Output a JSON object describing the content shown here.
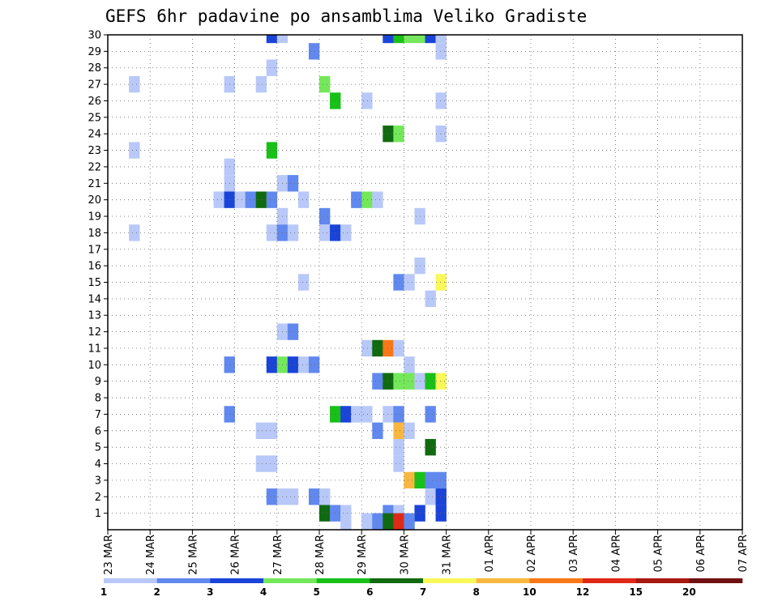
{
  "chart_data": {
    "type": "heatmap",
    "title": "GEFS 6hr padavine po ansamblima Veliko Gradiste",
    "x_tick_labels": [
      "23 MAR",
      "24 MAR",
      "25 MAR",
      "26 MAR",
      "27 MAR",
      "28 MAR",
      "29 MAR",
      "30 MAR",
      "31 MAR",
      "01 APR",
      "02 APR",
      "03 APR",
      "04 APR",
      "05 APR",
      "06 APR",
      "07 APR"
    ],
    "y_tick_labels": [
      "1",
      "2",
      "3",
      "4",
      "5",
      "6",
      "7",
      "8",
      "9",
      "10",
      "11",
      "12",
      "13",
      "14",
      "15",
      "16",
      "17",
      "18",
      "19",
      "20",
      "21",
      "22",
      "23",
      "24",
      "25",
      "26",
      "27",
      "28",
      "29",
      "30"
    ],
    "x_unit": "6-hour step from 23 MAR",
    "ylim": [
      0,
      30
    ],
    "grid": true,
    "colorbar": {
      "levels": [
        "1",
        "2",
        "3",
        "4",
        "5",
        "6",
        "7",
        "8",
        "10",
        "12",
        "15",
        "20"
      ],
      "colors": [
        "#b8c8f8",
        "#6088ee",
        "#1a44d8",
        "#74e85a",
        "#18c018",
        "#106a10",
        "#f8f858",
        "#f8b840",
        "#f87818",
        "#e02818",
        "#a81810",
        "#701010"
      ]
    },
    "cells": [
      {
        "step": 15,
        "member": 30,
        "bin": 2
      },
      {
        "step": 16,
        "member": 30,
        "bin": 0
      },
      {
        "step": 26,
        "member": 30,
        "bin": 2
      },
      {
        "step": 27,
        "member": 30,
        "bin": 4
      },
      {
        "step": 28,
        "member": 30,
        "bin": 3
      },
      {
        "step": 29,
        "member": 30,
        "bin": 3
      },
      {
        "step": 30,
        "member": 30,
        "bin": 2
      },
      {
        "step": 31,
        "member": 30,
        "bin": 0
      },
      {
        "step": 19,
        "member": 29,
        "bin": 1
      },
      {
        "step": 31,
        "member": 29,
        "bin": 0
      },
      {
        "step": 15,
        "member": 28,
        "bin": 0
      },
      {
        "step": 2,
        "member": 27,
        "bin": 0
      },
      {
        "step": 11,
        "member": 27,
        "bin": 0
      },
      {
        "step": 14,
        "member": 27,
        "bin": 0
      },
      {
        "step": 20,
        "member": 27,
        "bin": 3
      },
      {
        "step": 21,
        "member": 26,
        "bin": 4
      },
      {
        "step": 24,
        "member": 26,
        "bin": 0
      },
      {
        "step": 31,
        "member": 26,
        "bin": 0
      },
      {
        "step": 26,
        "member": 24,
        "bin": 5
      },
      {
        "step": 27,
        "member": 24,
        "bin": 3
      },
      {
        "step": 31,
        "member": 24,
        "bin": 0
      },
      {
        "step": 2,
        "member": 23,
        "bin": 0
      },
      {
        "step": 15,
        "member": 23,
        "bin": 4
      },
      {
        "step": 11,
        "member": 22,
        "bin": 0
      },
      {
        "step": 11,
        "member": 21,
        "bin": 0
      },
      {
        "step": 16,
        "member": 21,
        "bin": 0
      },
      {
        "step": 17,
        "member": 21,
        "bin": 1
      },
      {
        "step": 10,
        "member": 20,
        "bin": 0
      },
      {
        "step": 11,
        "member": 20,
        "bin": 2
      },
      {
        "step": 12,
        "member": 20,
        "bin": 0
      },
      {
        "step": 13,
        "member": 20,
        "bin": 1
      },
      {
        "step": 14,
        "member": 20,
        "bin": 5
      },
      {
        "step": 15,
        "member": 20,
        "bin": 1
      },
      {
        "step": 18,
        "member": 20,
        "bin": 0
      },
      {
        "step": 23,
        "member": 20,
        "bin": 1
      },
      {
        "step": 24,
        "member": 20,
        "bin": 3
      },
      {
        "step": 25,
        "member": 20,
        "bin": 0
      },
      {
        "step": 16,
        "member": 19,
        "bin": 0
      },
      {
        "step": 20,
        "member": 19,
        "bin": 1
      },
      {
        "step": 29,
        "member": 19,
        "bin": 0
      },
      {
        "step": 2,
        "member": 18,
        "bin": 0
      },
      {
        "step": 15,
        "member": 18,
        "bin": 0
      },
      {
        "step": 16,
        "member": 18,
        "bin": 1
      },
      {
        "step": 17,
        "member": 18,
        "bin": 0
      },
      {
        "step": 20,
        "member": 18,
        "bin": 0
      },
      {
        "step": 21,
        "member": 18,
        "bin": 2
      },
      {
        "step": 22,
        "member": 18,
        "bin": 0
      },
      {
        "step": 29,
        "member": 16,
        "bin": 0
      },
      {
        "step": 18,
        "member": 15,
        "bin": 0
      },
      {
        "step": 27,
        "member": 15,
        "bin": 1
      },
      {
        "step": 28,
        "member": 15,
        "bin": 0
      },
      {
        "step": 31,
        "member": 15,
        "bin": 6
      },
      {
        "step": 30,
        "member": 14,
        "bin": 0
      },
      {
        "step": 16,
        "member": 12,
        "bin": 0
      },
      {
        "step": 17,
        "member": 12,
        "bin": 1
      },
      {
        "step": 24,
        "member": 11,
        "bin": 0
      },
      {
        "step": 25,
        "member": 11,
        "bin": 5
      },
      {
        "step": 26,
        "member": 11,
        "bin": 8
      },
      {
        "step": 27,
        "member": 11,
        "bin": 0
      },
      {
        "step": 11,
        "member": 10,
        "bin": 1
      },
      {
        "step": 15,
        "member": 10,
        "bin": 2
      },
      {
        "step": 16,
        "member": 10,
        "bin": 3
      },
      {
        "step": 17,
        "member": 10,
        "bin": 2
      },
      {
        "step": 18,
        "member": 10,
        "bin": 0
      },
      {
        "step": 19,
        "member": 10,
        "bin": 1
      },
      {
        "step": 28,
        "member": 10,
        "bin": 0
      },
      {
        "step": 25,
        "member": 9,
        "bin": 1
      },
      {
        "step": 26,
        "member": 9,
        "bin": 5
      },
      {
        "step": 27,
        "member": 9,
        "bin": 3
      },
      {
        "step": 28,
        "member": 9,
        "bin": 3
      },
      {
        "step": 29,
        "member": 9,
        "bin": 0
      },
      {
        "step": 30,
        "member": 9,
        "bin": 4
      },
      {
        "step": 31,
        "member": 9,
        "bin": 6
      },
      {
        "step": 11,
        "member": 7,
        "bin": 1
      },
      {
        "step": 21,
        "member": 7,
        "bin": 4
      },
      {
        "step": 22,
        "member": 7,
        "bin": 2
      },
      {
        "step": 23,
        "member": 7,
        "bin": 0
      },
      {
        "step": 24,
        "member": 7,
        "bin": 0
      },
      {
        "step": 26,
        "member": 7,
        "bin": 0
      },
      {
        "step": 27,
        "member": 7,
        "bin": 1
      },
      {
        "step": 30,
        "member": 7,
        "bin": 1
      },
      {
        "step": 14,
        "member": 6,
        "bin": 0
      },
      {
        "step": 15,
        "member": 6,
        "bin": 0
      },
      {
        "step": 25,
        "member": 6,
        "bin": 1
      },
      {
        "step": 27,
        "member": 6,
        "bin": 7
      },
      {
        "step": 28,
        "member": 6,
        "bin": 0
      },
      {
        "step": 27,
        "member": 5,
        "bin": 0
      },
      {
        "step": 30,
        "member": 5,
        "bin": 5
      },
      {
        "step": 14,
        "member": 4,
        "bin": 0
      },
      {
        "step": 15,
        "member": 4,
        "bin": 0
      },
      {
        "step": 27,
        "member": 4,
        "bin": 0
      },
      {
        "step": 28,
        "member": 3,
        "bin": 7
      },
      {
        "step": 29,
        "member": 3,
        "bin": 4
      },
      {
        "step": 30,
        "member": 3,
        "bin": 1
      },
      {
        "step": 31,
        "member": 3,
        "bin": 1
      },
      {
        "step": 15,
        "member": 2,
        "bin": 1
      },
      {
        "step": 16,
        "member": 2,
        "bin": 0
      },
      {
        "step": 17,
        "member": 2,
        "bin": 0
      },
      {
        "step": 19,
        "member": 2,
        "bin": 1
      },
      {
        "step": 20,
        "member": 2,
        "bin": 0
      },
      {
        "step": 30,
        "member": 2,
        "bin": 0
      },
      {
        "step": 31,
        "member": 2,
        "bin": 2
      },
      {
        "step": 20,
        "member": 1,
        "bin": 5
      },
      {
        "step": 21,
        "member": 1,
        "bin": 1
      },
      {
        "step": 22,
        "member": 1,
        "bin": 0
      },
      {
        "step": 26,
        "member": 1,
        "bin": 1
      },
      {
        "step": 27,
        "member": 1,
        "bin": 0
      },
      {
        "step": 29,
        "member": 1,
        "bin": 2
      },
      {
        "step": 31,
        "member": 1,
        "bin": 2
      },
      {
        "step": 22,
        "member": 0.5,
        "bin": 0
      },
      {
        "step": 24,
        "member": 0.5,
        "bin": 0
      },
      {
        "step": 25,
        "member": 0.5,
        "bin": 1
      },
      {
        "step": 26,
        "member": 0.5,
        "bin": 5
      },
      {
        "step": 27,
        "member": 0.5,
        "bin": 9
      },
      {
        "step": 28,
        "member": 0.5,
        "bin": 1
      }
    ]
  }
}
